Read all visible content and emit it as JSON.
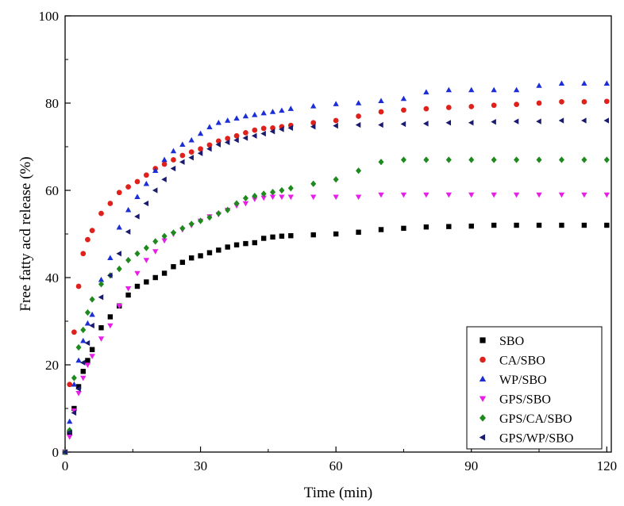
{
  "chart_data": {
    "type": "scatter",
    "title": "",
    "xlabel": "Time (min)",
    "ylabel": "Free fatty acd release (%)",
    "xlim": [
      0,
      121
    ],
    "ylim": [
      0,
      100
    ],
    "xticks": [
      0,
      30,
      60,
      90,
      120
    ],
    "yticks": [
      0,
      20,
      40,
      60,
      80,
      100
    ],
    "xtick_labels": [
      "0",
      "30",
      "60",
      "90",
      "120"
    ],
    "ytick_labels": [
      "0",
      "20",
      "40",
      "60",
      "80",
      "100"
    ],
    "legend_position": "bottom-right",
    "series": [
      {
        "name": "SBO",
        "marker": "square",
        "color": "#000000",
        "x": [
          0,
          1,
          2,
          3,
          4,
          5,
          6,
          8,
          10,
          12,
          14,
          16,
          18,
          20,
          22,
          24,
          26,
          28,
          30,
          32,
          34,
          36,
          38,
          40,
          42,
          44,
          46,
          48,
          50,
          55,
          60,
          65,
          70,
          75,
          80,
          85,
          90,
          95,
          100,
          105,
          110,
          115,
          120
        ],
        "y": [
          0,
          4.5,
          10,
          15,
          18.5,
          21,
          23.5,
          28.5,
          31,
          33.5,
          36,
          38,
          39,
          40,
          41,
          42.5,
          43.5,
          44.5,
          45,
          45.7,
          46.3,
          47,
          47.5,
          47.8,
          48,
          49,
          49.3,
          49.5,
          49.6,
          49.8,
          50,
          50.4,
          51,
          51.3,
          51.6,
          51.7,
          51.8,
          52,
          52,
          52,
          52,
          52,
          52
        ]
      },
      {
        "name": "CA/SBO",
        "marker": "circle",
        "color": "#e0201b",
        "x": [
          0,
          1,
          2,
          3,
          4,
          5,
          6,
          8,
          10,
          12,
          14,
          16,
          18,
          20,
          22,
          24,
          26,
          28,
          30,
          32,
          34,
          36,
          38,
          40,
          42,
          44,
          46,
          48,
          50,
          55,
          60,
          65,
          70,
          75,
          80,
          85,
          90,
          95,
          100,
          105,
          110,
          115,
          120
        ],
        "y": [
          0,
          15.5,
          27.5,
          38,
          45.5,
          48.7,
          50.8,
          54.7,
          57,
          59.5,
          60.8,
          62,
          63.5,
          65,
          66,
          67,
          68,
          68.8,
          69.5,
          70.4,
          71.3,
          71.9,
          72.5,
          73.2,
          73.8,
          74.2,
          74.3,
          74.6,
          74.9,
          75.5,
          76,
          77,
          78,
          78.4,
          78.7,
          79,
          79.2,
          79.5,
          79.7,
          80,
          80.3,
          80.3,
          80.4
        ]
      },
      {
        "name": "WP/SBO",
        "marker": "triangle-up",
        "color": "#1c2fd6",
        "x": [
          0,
          1,
          2,
          3,
          4,
          5,
          6,
          8,
          10,
          12,
          14,
          16,
          18,
          20,
          22,
          24,
          26,
          28,
          30,
          32,
          34,
          36,
          38,
          40,
          42,
          44,
          46,
          48,
          50,
          55,
          60,
          65,
          70,
          75,
          80,
          85,
          90,
          95,
          100,
          105,
          110,
          115,
          120
        ],
        "y": [
          0,
          7,
          15.5,
          21,
          25.5,
          29.5,
          31.5,
          39.5,
          44.5,
          51.5,
          55.5,
          58.5,
          61.5,
          64.5,
          67,
          69,
          70.5,
          71.5,
          73,
          74.5,
          75.5,
          76,
          76.5,
          77,
          77.3,
          77.7,
          78,
          78.3,
          78.7,
          79.3,
          79.8,
          80,
          80.5,
          81,
          82.5,
          83,
          83,
          83,
          83,
          84,
          84.5,
          84.5,
          84.5
        ]
      },
      {
        "name": "GPS/SBO",
        "marker": "triangle-down",
        "color": "#e81ee8",
        "x": [
          0,
          1,
          2,
          3,
          4,
          5,
          6,
          8,
          10,
          12,
          14,
          16,
          18,
          20,
          22,
          24,
          26,
          28,
          30,
          32,
          34,
          36,
          38,
          40,
          42,
          44,
          46,
          48,
          50,
          55,
          60,
          65,
          70,
          75,
          80,
          85,
          90,
          95,
          100,
          105,
          110,
          115,
          120
        ],
        "y": [
          0,
          3.5,
          9.5,
          13.5,
          17,
          20,
          22,
          26,
          29,
          33.5,
          37.5,
          41,
          44,
          46,
          48.5,
          50,
          51,
          52,
          53,
          54,
          54.5,
          55.5,
          56.5,
          57,
          58,
          58.3,
          58.5,
          58.5,
          58.5,
          58.5,
          58.5,
          58.5,
          59,
          59,
          59,
          59,
          59,
          59,
          59,
          59,
          59,
          59,
          59
        ]
      },
      {
        "name": "GPS/CA/SBO",
        "marker": "diamond",
        "color": "#1e8a1e",
        "x": [
          0,
          1,
          2,
          3,
          4,
          5,
          6,
          8,
          10,
          12,
          14,
          16,
          18,
          20,
          22,
          24,
          26,
          28,
          30,
          32,
          34,
          36,
          38,
          40,
          42,
          44,
          46,
          48,
          50,
          55,
          60,
          65,
          70,
          75,
          80,
          85,
          90,
          95,
          100,
          105,
          110,
          115,
          120
        ],
        "y": [
          0,
          5,
          17,
          24,
          28,
          32,
          35,
          38.5,
          40.5,
          42,
          44,
          45.5,
          46.8,
          48.3,
          49.5,
          50.3,
          51.3,
          52.3,
          53,
          53.8,
          54.7,
          55.5,
          57,
          58.2,
          58.7,
          59.2,
          59.6,
          60,
          60.5,
          61.5,
          62.5,
          64.5,
          66.5,
          67,
          67,
          67,
          67,
          67,
          67,
          67,
          67,
          67,
          67
        ]
      },
      {
        "name": "GPS/WP/SBO",
        "marker": "triangle-left",
        "color": "#1a1a6e",
        "x": [
          0,
          1,
          2,
          3,
          4,
          5,
          6,
          8,
          10,
          12,
          14,
          16,
          18,
          20,
          22,
          24,
          26,
          28,
          30,
          32,
          34,
          36,
          38,
          40,
          42,
          44,
          46,
          48,
          50,
          55,
          60,
          65,
          70,
          75,
          80,
          85,
          90,
          95,
          100,
          105,
          110,
          115,
          120
        ],
        "y": [
          0,
          4.5,
          9,
          14.5,
          20.5,
          25,
          29,
          35.5,
          40.5,
          45.5,
          50.5,
          54,
          57,
          60,
          62.5,
          65,
          66.5,
          67.5,
          68.5,
          69.5,
          70.5,
          71,
          71.5,
          72,
          72.5,
          73,
          73.5,
          74,
          74.3,
          74.6,
          74.8,
          75,
          75,
          75.2,
          75.3,
          75.5,
          75.5,
          75.7,
          75.8,
          75.8,
          76,
          76,
          76
        ]
      }
    ]
  }
}
